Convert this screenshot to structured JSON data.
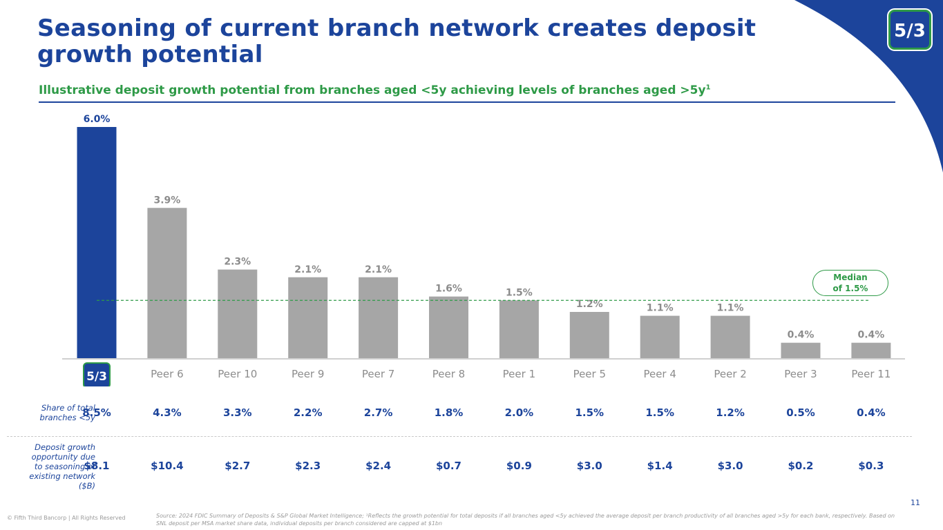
{
  "title": "Seasoning of current branch network creates deposit growth potential",
  "subtitle": "Illustrative deposit growth potential from branches aged <5y achieving levels of branches aged >5y",
  "subtitle_footnote": "1",
  "colors": {
    "brand_blue": "#1c449b",
    "peer_gray": "#a6a6a6",
    "accent_green": "#2e9a47"
  },
  "logo": {
    "icon": "fifth-third-logo-icon",
    "text": "5/3"
  },
  "chart_data": {
    "type": "bar",
    "categories": [
      "Fifth Third",
      "Peer 6",
      "Peer 10",
      "Peer 9",
      "Peer 7",
      "Peer 8",
      "Peer 1",
      "Peer 5",
      "Peer 4",
      "Peer 2",
      "Peer 3",
      "Peer 11"
    ],
    "values": [
      6.0,
      3.9,
      2.3,
      2.1,
      2.1,
      1.6,
      1.5,
      1.2,
      1.1,
      1.1,
      0.4,
      0.4
    ],
    "value_labels": [
      "6.0%",
      "3.9%",
      "2.3%",
      "2.1%",
      "2.1%",
      "1.6%",
      "1.5%",
      "1.2%",
      "1.1%",
      "1.1%",
      "0.4%",
      "0.4%"
    ],
    "unit": "%",
    "ylim": [
      0,
      6.0
    ],
    "grid": false,
    "median": {
      "value": 1.5,
      "label_line1": "Median",
      "label_line2": "of 1.5%"
    },
    "highlight_index": 0,
    "first_category_shown_as": "logo"
  },
  "rows": {
    "share": {
      "label_lines": [
        "Share of total",
        "branches <5y"
      ],
      "values": [
        "8.5%",
        "4.3%",
        "3.3%",
        "2.2%",
        "2.7%",
        "1.8%",
        "2.0%",
        "1.5%",
        "1.5%",
        "1.2%",
        "0.5%",
        "0.4%"
      ]
    },
    "deposit": {
      "label_lines": [
        "Deposit growth",
        "opportunity due",
        "to seasoning of",
        "existing network",
        "($B)"
      ],
      "values": [
        "$8.1",
        "$10.4",
        "$2.7",
        "$2.3",
        "$2.4",
        "$0.7",
        "$0.9",
        "$3.0",
        "$1.4",
        "$3.0",
        "$0.2",
        "$0.3"
      ]
    }
  },
  "footer": {
    "copyright": "© Fifth Third Bancorp | All Rights Reserved",
    "source": "Source: 2024 FDIC Summary of Deposits & S&P Global Market Intelligence; ¹Reflects the growth potential for total deposits if all branches aged <5y achieved the average deposit per branch productivity of all branches aged >5y for each bank, respectively. Based on SNL deposit per MSA market share data, individual deposits per branch considered are capped at $1bn",
    "page_number": "11"
  }
}
